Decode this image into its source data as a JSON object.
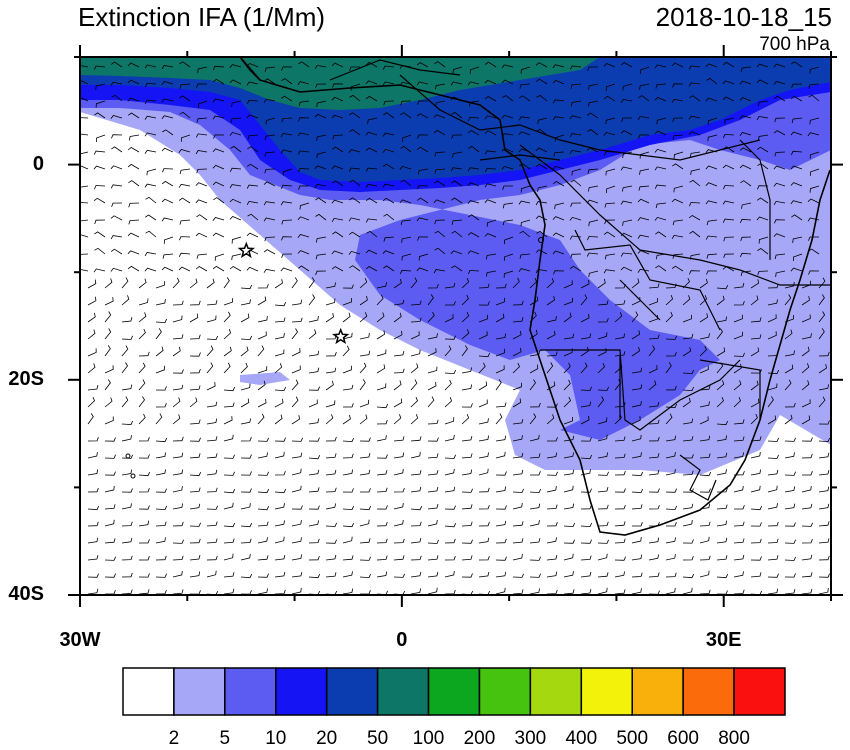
{
  "title": {
    "left": "Extinction IFA (1/Mm)",
    "right": "2018-10-18_15",
    "level": "700 hPa"
  },
  "axes": {
    "x_ticks": [
      {
        "label": "30W",
        "lon": -30
      },
      {
        "label": "0",
        "lon": 0
      },
      {
        "label": "30E",
        "lon": 30
      }
    ],
    "y_ticks": [
      {
        "label": "0",
        "lat": 0
      },
      {
        "label": "20S",
        "lat": -20
      },
      {
        "label": "40S",
        "lat": -40
      }
    ],
    "lon_range": [
      -30,
      40
    ],
    "lat_range": [
      -40,
      10
    ]
  },
  "colorbar": {
    "labels": [
      "2",
      "5",
      "10",
      "20",
      "50",
      "100",
      "200",
      "300",
      "400",
      "500",
      "600",
      "800"
    ],
    "colors": [
      "#ffffff",
      "#a7a7f7",
      "#5c5cf2",
      "#1414f5",
      "#0b3db0",
      "#0e7666",
      "#0ca61f",
      "#45c30e",
      "#a5d80f",
      "#f3f20a",
      "#f9b00a",
      "#fb6b0b",
      "#fb1010"
    ]
  },
  "markers": [
    {
      "name": "star-marker",
      "lon": -14.5,
      "lat": -8
    },
    {
      "name": "star-marker",
      "lon": -5.7,
      "lat": -16
    }
  ],
  "legend_colors": {
    "white": "#ffffff",
    "light": "#a7a7f7",
    "medium": "#5c5cf2",
    "dark": "#1414f5",
    "navy": "#0b3db0",
    "teal": "#0e7666"
  }
}
